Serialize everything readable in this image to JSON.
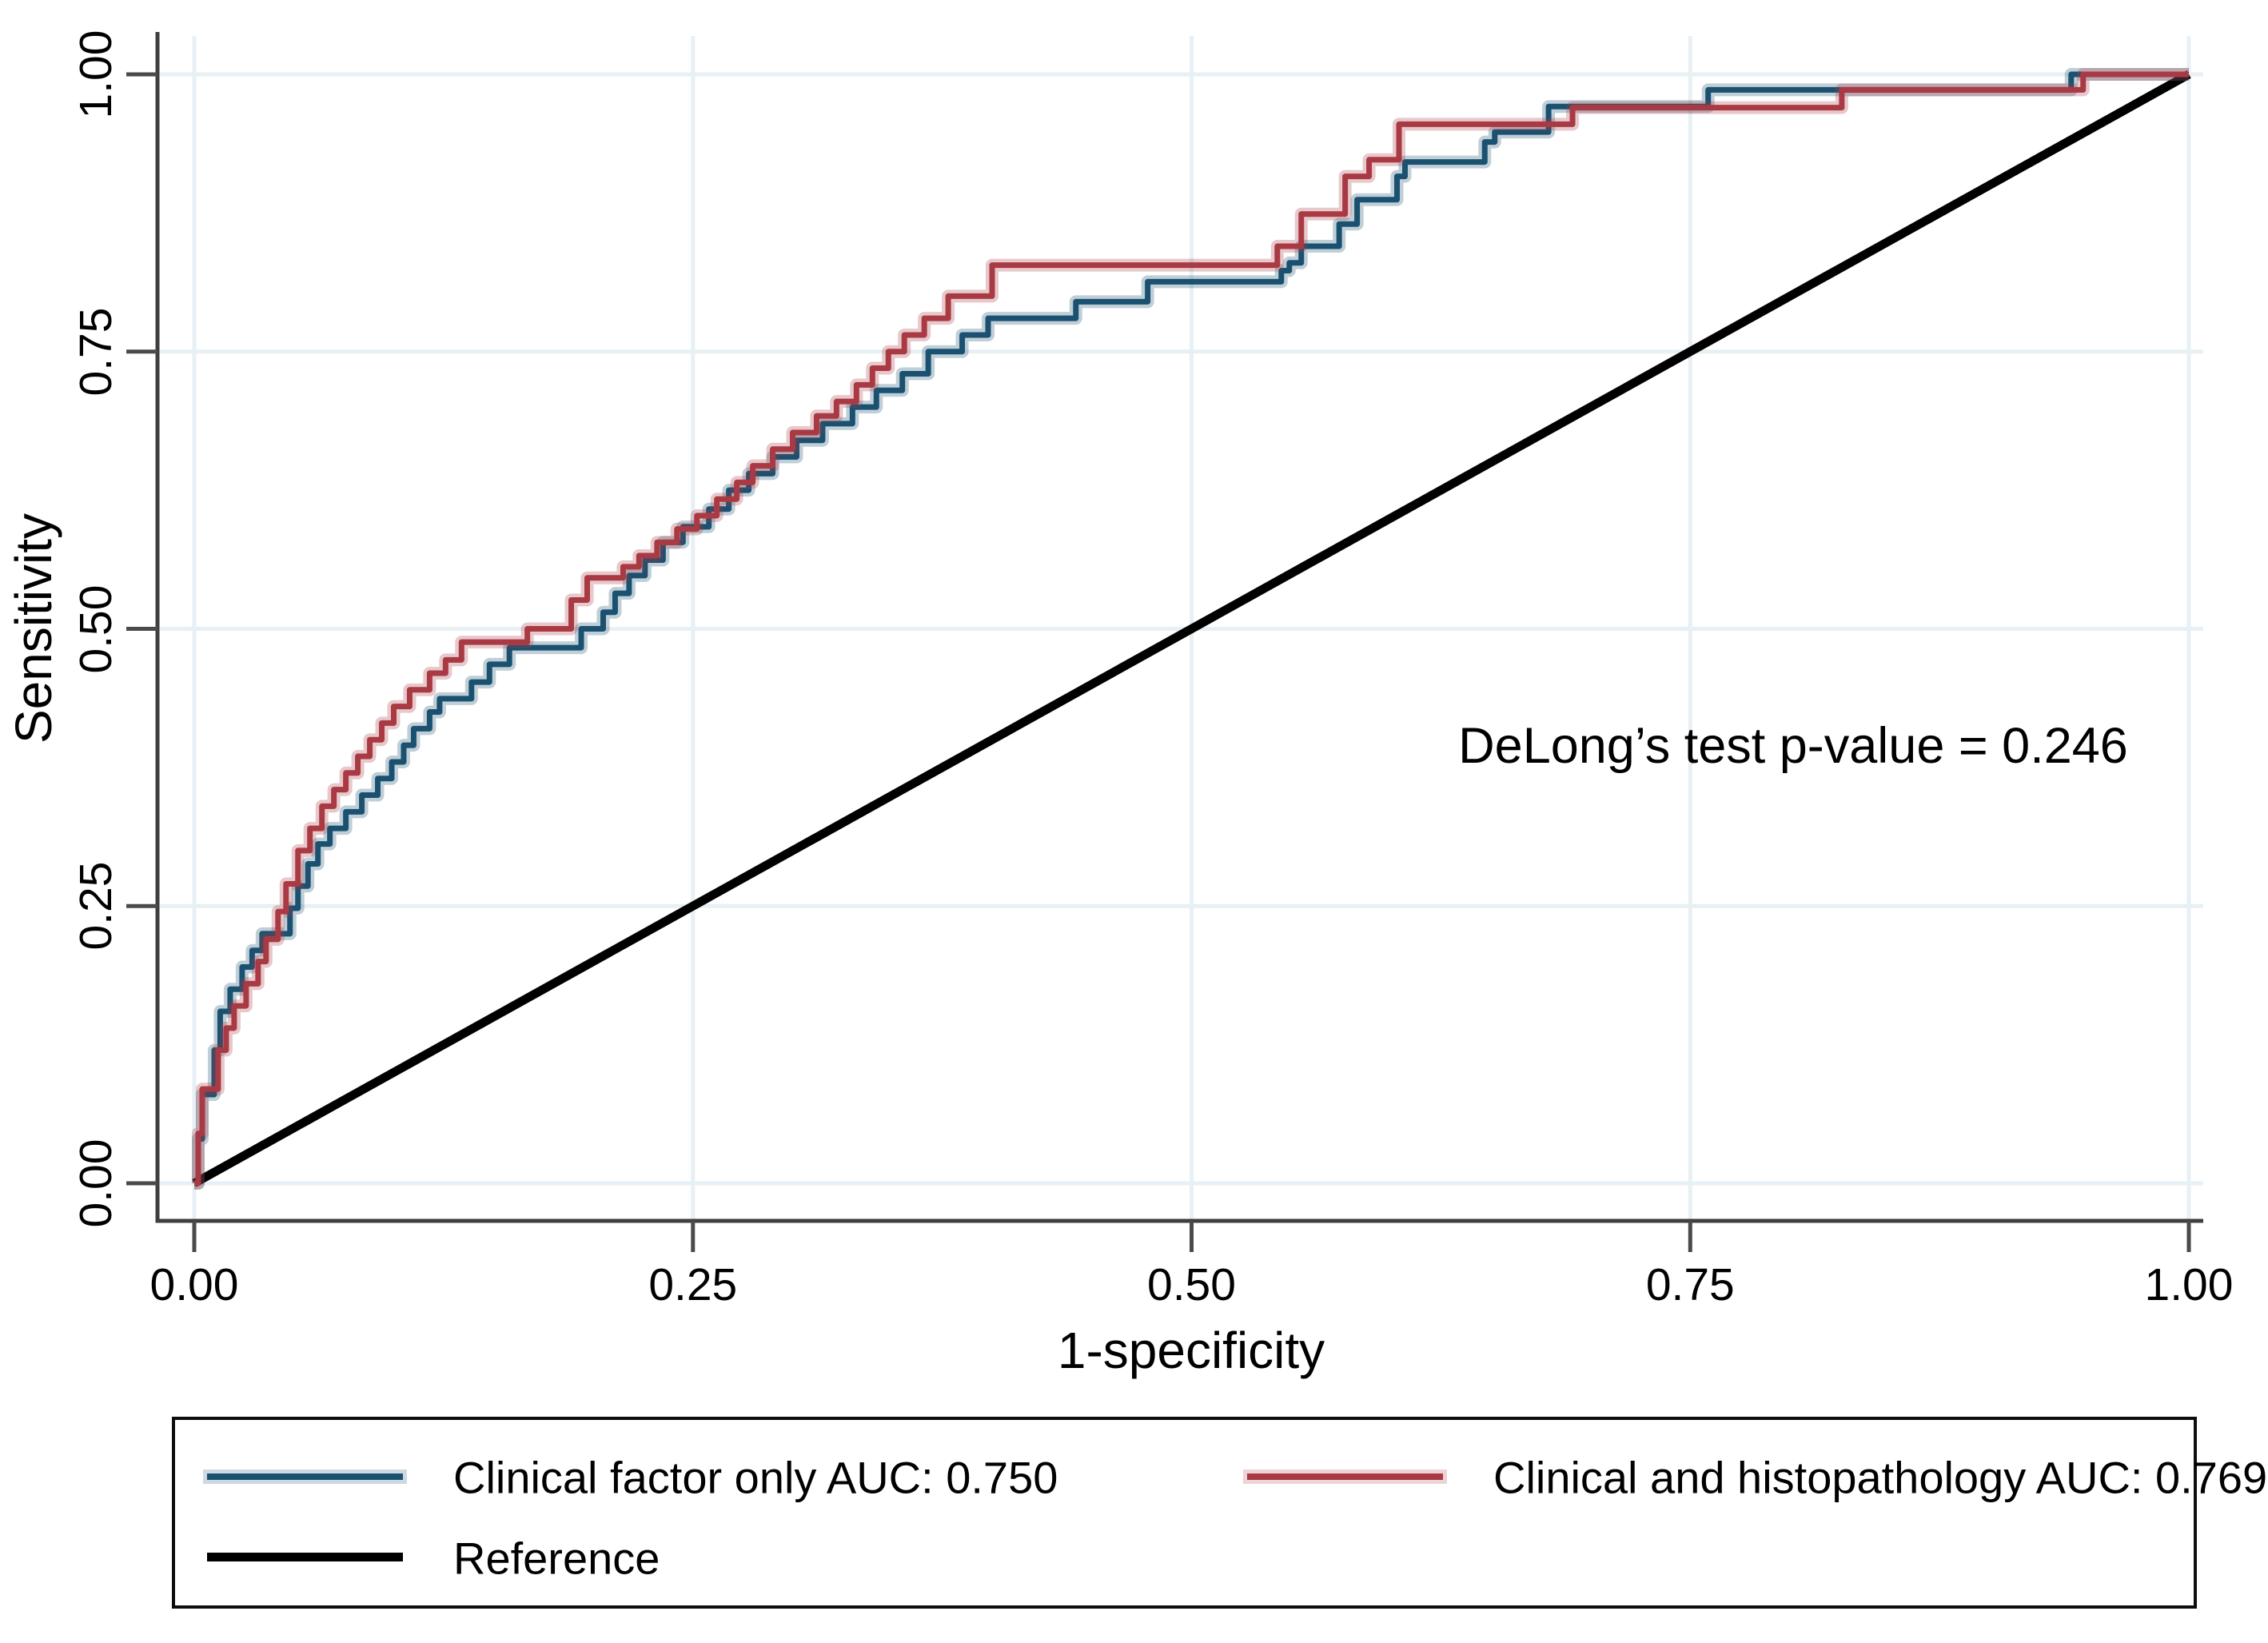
{
  "figure": {
    "x_axis_title": "1-specificity",
    "y_axis_title": "Sensitivity",
    "annotation": "DeLong’s test p-value = 0.246"
  },
  "axes": {
    "x_ticks": [
      "0.00",
      "0.25",
      "0.50",
      "0.75",
      "1.00"
    ],
    "y_ticks": [
      "0.00",
      "0.25",
      "0.50",
      "0.75",
      "1.00"
    ]
  },
  "legend": {
    "items": [
      {
        "label": "Clinical factor only AUC: 0.750",
        "color": "#1b5170"
      },
      {
        "label": "Clinical and histopathology AUC: 0.769",
        "color": "#a93a44"
      },
      {
        "label": "Reference",
        "color": "#000000"
      }
    ]
  },
  "colors": {
    "blue_series": "#1b5170",
    "red_series": "#a93a44",
    "reference": "#000000",
    "gridline": "#e7f0f4",
    "axis": "#3f3f3f"
  },
  "chart_data": {
    "type": "line",
    "subtype": "roc-step-curves",
    "title": "",
    "xlabel": "1-specificity",
    "ylabel": "Sensitivity",
    "xlim": [
      0,
      1
    ],
    "ylim": [
      0,
      1
    ],
    "x_tick_values": [
      0,
      0.25,
      0.5,
      0.75,
      1.0
    ],
    "y_tick_values": [
      0,
      0.25,
      0.5,
      0.75,
      1.0
    ],
    "grid": true,
    "legend_position": "bottom",
    "annotation": {
      "text": "DeLong’s test p-value = 0.246",
      "x": 0.8,
      "y": 0.39
    },
    "series": [
      {
        "name": "clinical-factor-only",
        "label": "Clinical factor only AUC: 0.750",
        "auc": 0.75,
        "color": "#1b5170",
        "step": true,
        "points": [
          [
            0,
            0
          ],
          [
            0.002,
            0.04
          ],
          [
            0.004,
            0.08
          ],
          [
            0.01,
            0.12
          ],
          [
            0.013,
            0.155
          ],
          [
            0.018,
            0.175
          ],
          [
            0.024,
            0.195
          ],
          [
            0.029,
            0.21
          ],
          [
            0.034,
            0.225
          ],
          [
            0.048,
            0.248
          ],
          [
            0.052,
            0.268
          ],
          [
            0.057,
            0.288
          ],
          [
            0.062,
            0.306
          ],
          [
            0.068,
            0.32
          ],
          [
            0.076,
            0.335
          ],
          [
            0.084,
            0.35
          ],
          [
            0.092,
            0.365
          ],
          [
            0.099,
            0.38
          ],
          [
            0.105,
            0.395
          ],
          [
            0.11,
            0.41
          ],
          [
            0.118,
            0.425
          ],
          [
            0.123,
            0.437
          ],
          [
            0.139,
            0.452
          ],
          [
            0.148,
            0.468
          ],
          [
            0.158,
            0.483
          ],
          [
            0.194,
            0.5
          ],
          [
            0.205,
            0.515
          ],
          [
            0.211,
            0.532
          ],
          [
            0.218,
            0.548
          ],
          [
            0.226,
            0.562
          ],
          [
            0.235,
            0.578
          ],
          [
            0.245,
            0.592
          ],
          [
            0.258,
            0.608
          ],
          [
            0.268,
            0.625
          ],
          [
            0.278,
            0.64
          ],
          [
            0.29,
            0.655
          ],
          [
            0.302,
            0.67
          ],
          [
            0.315,
            0.685
          ],
          [
            0.33,
            0.7
          ],
          [
            0.342,
            0.715
          ],
          [
            0.355,
            0.73
          ],
          [
            0.368,
            0.75
          ],
          [
            0.385,
            0.765
          ],
          [
            0.398,
            0.78
          ],
          [
            0.442,
            0.795
          ],
          [
            0.478,
            0.813
          ],
          [
            0.545,
            0.823
          ],
          [
            0.549,
            0.83
          ],
          [
            0.555,
            0.845
          ],
          [
            0.574,
            0.865
          ],
          [
            0.583,
            0.887
          ],
          [
            0.603,
            0.908
          ],
          [
            0.607,
            0.921
          ],
          [
            0.647,
            0.939
          ],
          [
            0.652,
            0.948
          ],
          [
            0.679,
            0.971
          ],
          [
            0.759,
            0.986
          ],
          [
            0.941,
            1
          ],
          [
            1,
            1
          ]
        ]
      },
      {
        "name": "clinical-and-histopathology",
        "label": "Clinical and histopathology AUC: 0.769",
        "auc": 0.769,
        "color": "#a93a44",
        "step": true,
        "points": [
          [
            0,
            0
          ],
          [
            0.002,
            0.045
          ],
          [
            0.004,
            0.085
          ],
          [
            0.012,
            0.12
          ],
          [
            0.016,
            0.14
          ],
          [
            0.02,
            0.16
          ],
          [
            0.026,
            0.18
          ],
          [
            0.032,
            0.2
          ],
          [
            0.036,
            0.22
          ],
          [
            0.042,
            0.245
          ],
          [
            0.046,
            0.27
          ],
          [
            0.052,
            0.3
          ],
          [
            0.058,
            0.32
          ],
          [
            0.064,
            0.34
          ],
          [
            0.07,
            0.355
          ],
          [
            0.076,
            0.37
          ],
          [
            0.082,
            0.385
          ],
          [
            0.088,
            0.4
          ],
          [
            0.094,
            0.415
          ],
          [
            0.1,
            0.43
          ],
          [
            0.108,
            0.445
          ],
          [
            0.118,
            0.46
          ],
          [
            0.126,
            0.472
          ],
          [
            0.134,
            0.488
          ],
          [
            0.167,
            0.5
          ],
          [
            0.189,
            0.526
          ],
          [
            0.197,
            0.546
          ],
          [
            0.215,
            0.556
          ],
          [
            0.223,
            0.566
          ],
          [
            0.232,
            0.578
          ],
          [
            0.242,
            0.59
          ],
          [
            0.252,
            0.602
          ],
          [
            0.262,
            0.617
          ],
          [
            0.272,
            0.632
          ],
          [
            0.28,
            0.647
          ],
          [
            0.29,
            0.662
          ],
          [
            0.3,
            0.677
          ],
          [
            0.312,
            0.692
          ],
          [
            0.322,
            0.705
          ],
          [
            0.332,
            0.72
          ],
          [
            0.34,
            0.735
          ],
          [
            0.348,
            0.75
          ],
          [
            0.356,
            0.765
          ],
          [
            0.366,
            0.78
          ],
          [
            0.378,
            0.8
          ],
          [
            0.4,
            0.828
          ],
          [
            0.543,
            0.845
          ],
          [
            0.555,
            0.874
          ],
          [
            0.577,
            0.908
          ],
          [
            0.589,
            0.923
          ],
          [
            0.604,
            0.955
          ],
          [
            0.691,
            0.97
          ],
          [
            0.826,
            0.986
          ],
          [
            0.947,
            1
          ],
          [
            1,
            1
          ]
        ]
      },
      {
        "name": "reference",
        "label": "Reference",
        "color": "#000000",
        "step": false,
        "points": [
          [
            0,
            0
          ],
          [
            1,
            1
          ]
        ]
      }
    ]
  }
}
